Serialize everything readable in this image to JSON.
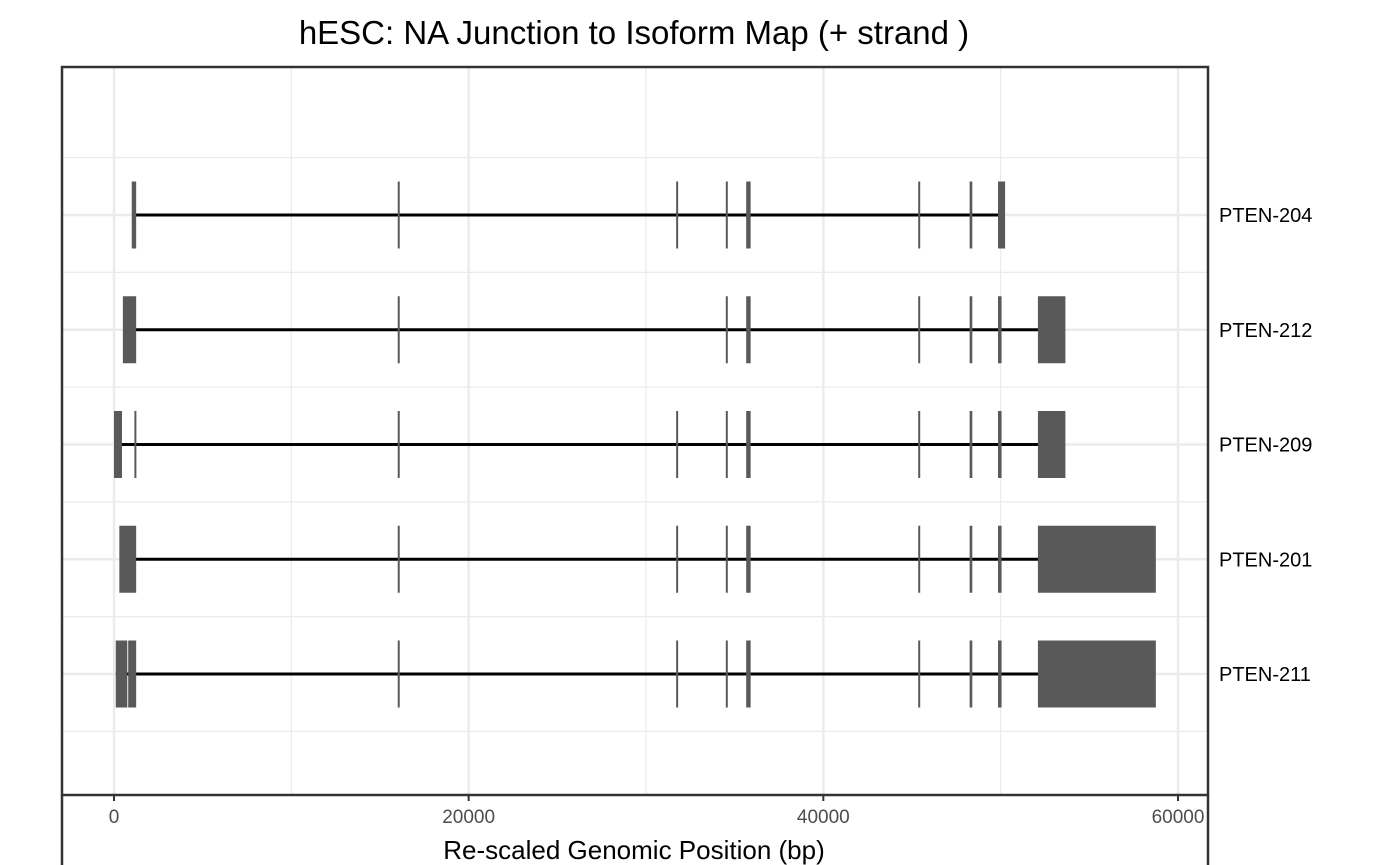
{
  "chart_data": {
    "type": "gantt",
    "title": "hESC: NA Junction to Isoform Map (+ strand )",
    "xlabel": "Re-scaled Genomic Position (bp)",
    "ylabel": "",
    "xlim": [
      -3000,
      61000
    ],
    "x_ticks": [
      0,
      20000,
      40000,
      60000
    ],
    "x_tick_labels": [
      "0",
      "20000",
      "40000",
      "60000"
    ],
    "grid": true,
    "legend": "none",
    "colors": {
      "exon": "#595959",
      "intron": "#000000",
      "grid": "#ebebeb",
      "panel_border": "#333333"
    },
    "isoforms": [
      {
        "name": "PTEN-204",
        "span": [
          1100,
          50200
        ],
        "exons": [
          [
            1000,
            1250
          ],
          [
            16000,
            16080
          ],
          [
            31700,
            31760
          ],
          [
            34500,
            34560
          ],
          [
            35650,
            35900
          ],
          [
            45350,
            45450
          ],
          [
            48250,
            48400
          ],
          [
            49850,
            50250
          ]
        ]
      },
      {
        "name": "PTEN-212",
        "span": [
          1200,
          53600
        ],
        "exons": [
          [
            500,
            1250
          ],
          [
            16000,
            16080
          ],
          [
            34500,
            34560
          ],
          [
            35650,
            35900
          ],
          [
            45350,
            45450
          ],
          [
            48250,
            48400
          ],
          [
            49850,
            50050
          ],
          [
            52100,
            53650
          ]
        ]
      },
      {
        "name": "PTEN-209",
        "span": [
          100,
          53600
        ],
        "exons": [
          [
            0,
            450
          ],
          [
            1150,
            1230
          ],
          [
            16000,
            16080
          ],
          [
            31700,
            31760
          ],
          [
            34500,
            34560
          ],
          [
            35650,
            35900
          ],
          [
            45350,
            45450
          ],
          [
            48250,
            48400
          ],
          [
            49850,
            50050
          ],
          [
            52100,
            53650
          ]
        ]
      },
      {
        "name": "PTEN-201",
        "span": [
          1200,
          58500
        ],
        "exons": [
          [
            300,
            1250
          ],
          [
            16000,
            16080
          ],
          [
            31700,
            31760
          ],
          [
            34500,
            34560
          ],
          [
            35650,
            35900
          ],
          [
            45350,
            45450
          ],
          [
            48250,
            48400
          ],
          [
            49850,
            50050
          ],
          [
            52100,
            58750
          ]
        ]
      },
      {
        "name": "PTEN-211",
        "span": [
          100,
          58500
        ],
        "exons": [
          [
            100,
            750
          ],
          [
            800,
            1250
          ],
          [
            16000,
            16080
          ],
          [
            31700,
            31760
          ],
          [
            34500,
            34560
          ],
          [
            35650,
            35900
          ],
          [
            45350,
            45450
          ],
          [
            48250,
            48400
          ],
          [
            49850,
            50050
          ],
          [
            52100,
            58750
          ]
        ]
      }
    ]
  }
}
